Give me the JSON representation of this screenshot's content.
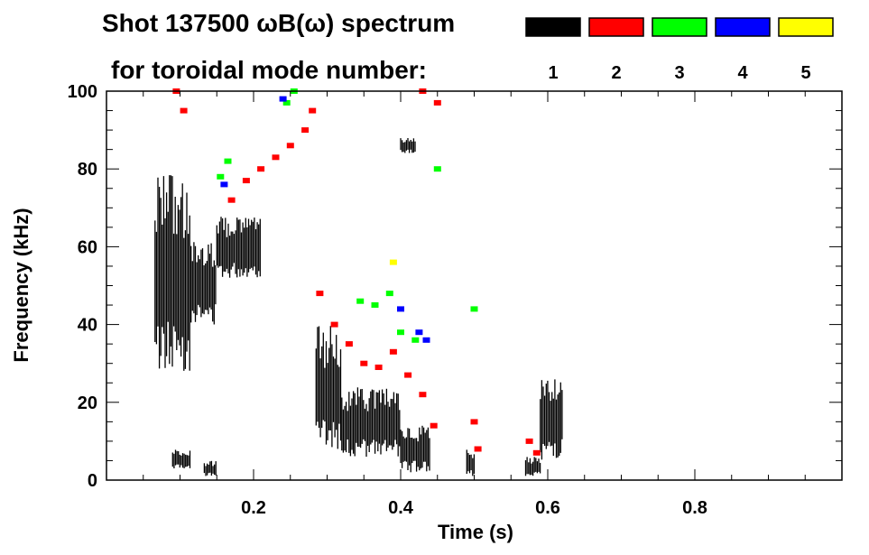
{
  "chart_data": {
    "type": "heatmap",
    "title": "Shot 137500 ωB(ω) spectrum",
    "subtitle": "for toroidal mode number:",
    "xlabel": "Time (s)",
    "ylabel": "Frequency (kHz)",
    "xlim": [
      0.0,
      1.0
    ],
    "ylim": [
      0,
      100
    ],
    "x_ticks": [
      0.2,
      0.4,
      0.6,
      0.8
    ],
    "x_tick_labels": [
      "0.2",
      "0.4",
      "0.6",
      "0.8"
    ],
    "y_ticks": [
      0,
      20,
      40,
      60,
      80,
      100
    ],
    "y_tick_labels": [
      "0",
      "20",
      "40",
      "60",
      "80",
      "100"
    ],
    "legend_position": "top-right",
    "series": [
      {
        "name": "1",
        "color": "#000000",
        "regions": [
          {
            "t0": 0.066,
            "t1": 0.115,
            "f0": 28,
            "f1": 80
          },
          {
            "t0": 0.115,
            "t1": 0.15,
            "f0": 40,
            "f1": 62
          },
          {
            "t0": 0.15,
            "t1": 0.21,
            "f0": 52,
            "f1": 68
          },
          {
            "t0": 0.09,
            "t1": 0.115,
            "f0": 3,
            "f1": 8
          },
          {
            "t0": 0.133,
            "t1": 0.15,
            "f0": 1,
            "f1": 5
          },
          {
            "t0": 0.285,
            "t1": 0.32,
            "f0": 8,
            "f1": 40
          },
          {
            "t0": 0.32,
            "t1": 0.4,
            "f0": 6,
            "f1": 24
          },
          {
            "t0": 0.4,
            "t1": 0.44,
            "f0": 2,
            "f1": 14
          },
          {
            "t0": 0.4,
            "t1": 0.42,
            "f0": 84,
            "f1": 88
          },
          {
            "t0": 0.49,
            "t1": 0.5,
            "f0": 1,
            "f1": 8
          },
          {
            "t0": 0.57,
            "t1": 0.59,
            "f0": 1,
            "f1": 6
          },
          {
            "t0": 0.59,
            "t1": 0.62,
            "f0": 5,
            "f1": 28
          }
        ]
      },
      {
        "name": "2",
        "color": "#ff0000",
        "points": [
          [
            0.17,
            72
          ],
          [
            0.19,
            77
          ],
          [
            0.21,
            80
          ],
          [
            0.23,
            83
          ],
          [
            0.25,
            86
          ],
          [
            0.27,
            90
          ],
          [
            0.28,
            95
          ],
          [
            0.29,
            48
          ],
          [
            0.31,
            40
          ],
          [
            0.33,
            35
          ],
          [
            0.35,
            30
          ],
          [
            0.37,
            29
          ],
          [
            0.39,
            33
          ],
          [
            0.41,
            27
          ],
          [
            0.43,
            22
          ],
          [
            0.445,
            14
          ],
          [
            0.5,
            15
          ],
          [
            0.505,
            8
          ],
          [
            0.575,
            10
          ],
          [
            0.585,
            7
          ],
          [
            0.095,
            100
          ],
          [
            0.105,
            95
          ],
          [
            0.43,
            100
          ],
          [
            0.45,
            97
          ]
        ]
      },
      {
        "name": "3",
        "color": "#00ff00",
        "points": [
          [
            0.155,
            78
          ],
          [
            0.165,
            82
          ],
          [
            0.245,
            97
          ],
          [
            0.255,
            100
          ],
          [
            0.345,
            46
          ],
          [
            0.365,
            45
          ],
          [
            0.385,
            48
          ],
          [
            0.4,
            38
          ],
          [
            0.42,
            36
          ],
          [
            0.45,
            80
          ],
          [
            0.5,
            44
          ]
        ]
      },
      {
        "name": "4",
        "color": "#0000ff",
        "points": [
          [
            0.16,
            76
          ],
          [
            0.24,
            98
          ],
          [
            0.4,
            44
          ],
          [
            0.425,
            38
          ],
          [
            0.435,
            36
          ]
        ]
      },
      {
        "name": "5",
        "color": "#ffff00",
        "points": [
          [
            0.39,
            56
          ]
        ]
      }
    ]
  }
}
